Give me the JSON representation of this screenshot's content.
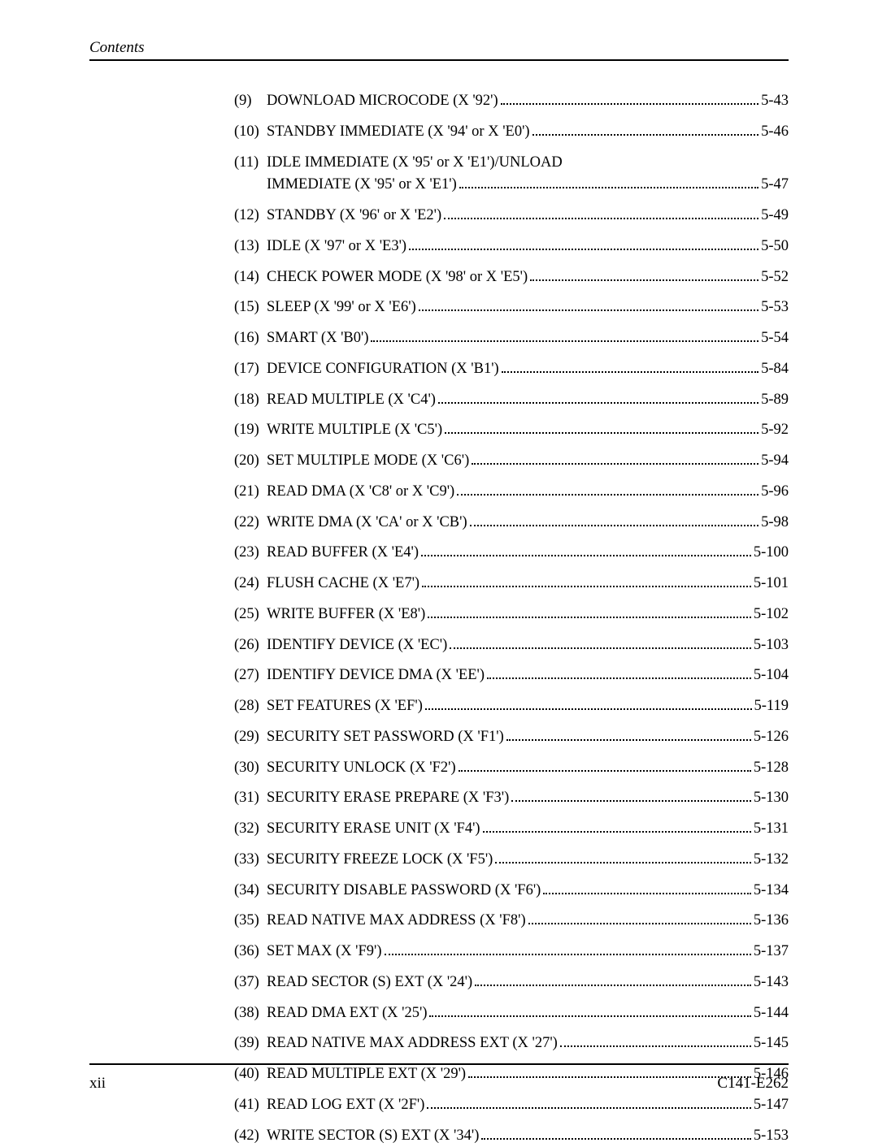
{
  "header": {
    "title": "Contents"
  },
  "entries": [
    {
      "num": "(9)",
      "text": "DOWNLOAD MICROCODE (X '92')",
      "page": "5-43"
    },
    {
      "num": "(10)",
      "text": "STANDBY IMMEDIATE (X '94' or X 'E0')",
      "page": "5-46"
    },
    {
      "num": "(11)",
      "text_line1": "IDLE IMMEDIATE (X '95' or X 'E1')/UNLOAD",
      "text_line2": "IMMEDIATE (X '95' or X 'E1')",
      "page": "5-47",
      "multiline": true
    },
    {
      "num": "(12)",
      "text": "STANDBY (X '96' or X 'E2')",
      "page": "5-49"
    },
    {
      "num": "(13)",
      "text": "IDLE (X '97' or X 'E3')",
      "page": "5-50"
    },
    {
      "num": "(14)",
      "text": "CHECK POWER MODE (X '98' or X 'E5')",
      "page": "5-52"
    },
    {
      "num": "(15)",
      "text": "SLEEP  (X '99' or X 'E6')",
      "page": "5-53"
    },
    {
      "num": "(16)",
      "text": "SMART (X 'B0')",
      "page": "5-54"
    },
    {
      "num": "(17)",
      "text": "DEVICE CONFIGURATION (X 'B1')",
      "page": "5-84"
    },
    {
      "num": "(18)",
      "text": "READ MULTIPLE (X 'C4')",
      "page": "5-89"
    },
    {
      "num": "(19)",
      "text": "WRITE MULTIPLE (X 'C5')",
      "page": "5-92"
    },
    {
      "num": "(20)",
      "text": "SET MULTIPLE MODE (X 'C6')",
      "page": "5-94"
    },
    {
      "num": "(21)",
      "text": "READ DMA (X 'C8' or X 'C9')",
      "page": "5-96"
    },
    {
      "num": "(22)",
      "text": "WRITE DMA (X 'CA' or X 'CB')",
      "page": "5-98"
    },
    {
      "num": "(23)",
      "text": "READ BUFFER (X 'E4')",
      "page": "5-100"
    },
    {
      "num": "(24)",
      "text": "FLUSH CACHE (X 'E7')",
      "page": "5-101"
    },
    {
      "num": "(25)",
      "text": "WRITE BUFFER (X 'E8')",
      "page": "5-102"
    },
    {
      "num": "(26)",
      "text": "IDENTIFY DEVICE (X 'EC')",
      "page": "5-103"
    },
    {
      "num": "(27)",
      "text": "IDENTIFY DEVICE DMA (X 'EE')",
      "page": "5-104"
    },
    {
      "num": "(28)",
      "text": "SET FEATURES (X 'EF')",
      "page": "5-119"
    },
    {
      "num": "(29)",
      "text": "SECURITY SET PASSWORD (X 'F1')",
      "page": "5-126"
    },
    {
      "num": "(30)",
      "text": "SECURITY UNLOCK (X 'F2')",
      "page": "5-128"
    },
    {
      "num": "(31)",
      "text": "SECURITY ERASE PREPARE (X 'F3')",
      "page": "5-130"
    },
    {
      "num": "(32)",
      "text": "SECURITY ERASE UNIT (X 'F4')",
      "page": "5-131"
    },
    {
      "num": "(33)",
      "text": "SECURITY FREEZE LOCK (X 'F5')",
      "page": "5-132"
    },
    {
      "num": "(34)",
      "text": "SECURITY DISABLE PASSWORD (X 'F6')",
      "page": "5-134"
    },
    {
      "num": "(35)",
      "text": "READ NATIVE MAX ADDRESS (X 'F8')",
      "page": "5-136"
    },
    {
      "num": "(36)",
      "text": "SET MAX (X 'F9')",
      "page": "5-137"
    },
    {
      "num": "(37)",
      "text": "READ SECTOR (S) EXT (X '24')",
      "page": "5-143"
    },
    {
      "num": "(38)",
      "text": "READ DMA EXT (X '25')",
      "page": "5-144"
    },
    {
      "num": "(39)",
      "text": "READ NATIVE MAX ADDRESS EXT (X '27')",
      "page": "5-145"
    },
    {
      "num": "(40)",
      "text": "READ MULTIPLE EXT (X '29')",
      "page": "5-146"
    },
    {
      "num": "(41)",
      "text": "READ LOG EXT (X '2F')",
      "page": "5-147"
    },
    {
      "num": "(42)",
      "text": "WRITE SECTOR (S) EXT (X '34')",
      "page": "5-153"
    }
  ],
  "footer": {
    "page_number": "xii",
    "doc_number": "C141-E262"
  }
}
